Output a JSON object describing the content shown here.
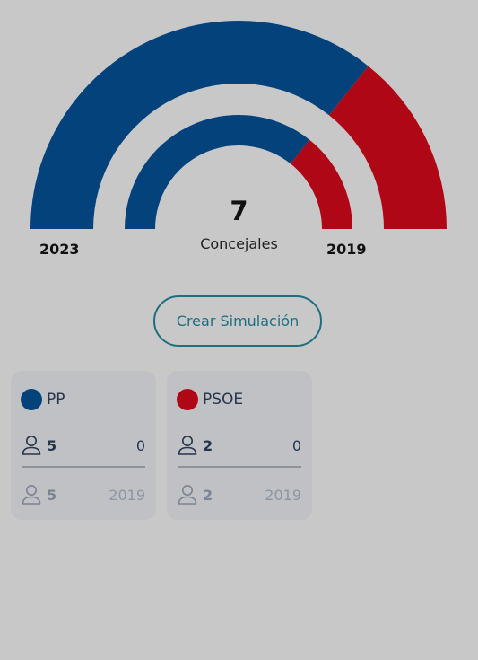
{
  "colors": {
    "background": "#c8c8c8",
    "pp": "#04427b",
    "psoe": "#b00716",
    "accent": "#1e6f80",
    "card": "#bfc1c4"
  },
  "hemicycle": {
    "total": "7",
    "caption": "Concejales",
    "outer_year": "2023",
    "inner_year": "2019"
  },
  "chart_data": {
    "type": "pie",
    "rings": [
      {
        "year": "2023",
        "series": [
          {
            "name": "PP",
            "value": 5,
            "color": "#04427b"
          },
          {
            "name": "PSOE",
            "value": 2,
            "color": "#b00716"
          }
        ]
      },
      {
        "year": "2019",
        "series": [
          {
            "name": "PP",
            "value": 5,
            "color": "#04427b"
          },
          {
            "name": "PSOE",
            "value": 2,
            "color": "#b00716"
          }
        ]
      }
    ]
  },
  "create_button_label": "Crear Simulación",
  "parties": [
    {
      "name": "PP",
      "color": "#04427b",
      "seats": "5",
      "change": "0",
      "previous_seats": "5",
      "previous_year": "2019"
    },
    {
      "name": "PSOE",
      "color": "#b00716",
      "seats": "2",
      "change": "0",
      "previous_seats": "2",
      "previous_year": "2019"
    }
  ],
  "icons": {
    "person": "person-icon"
  }
}
